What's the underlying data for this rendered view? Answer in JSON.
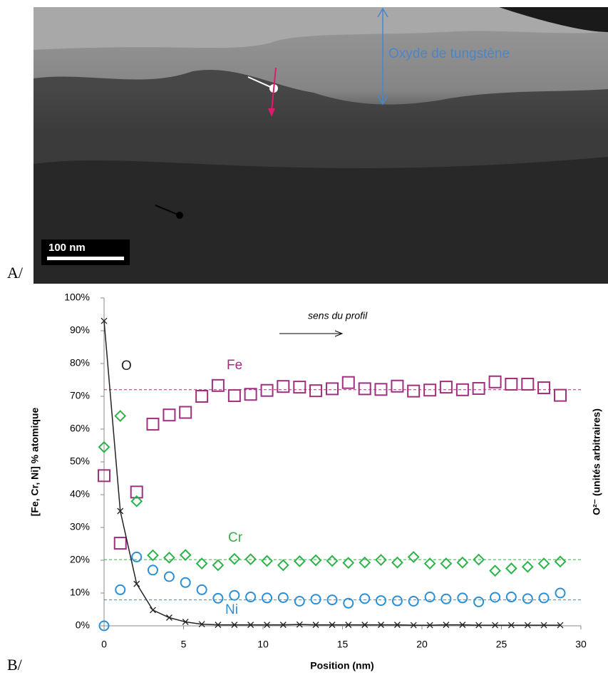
{
  "panel_a": {
    "panel_label": "A/",
    "annotation": "Oxyde de tungstène",
    "scale_bar": "100 nm"
  },
  "chart_data": {
    "type": "scatter",
    "panel_label": "B/",
    "x_label": "Position (nm)",
    "y_label": "[Fe, Cr, Ni] % atomique",
    "y2_label": "O²⁻ (unités arbitraires)",
    "annotation": "sens du profil",
    "xlim": [
      0,
      30
    ],
    "xticks": [
      0,
      5,
      10,
      15,
      20,
      25,
      30
    ],
    "ylim": [
      0,
      100
    ],
    "yticks": [
      {
        "value": 0,
        "label": "0%"
      },
      {
        "value": 10,
        "label": "10%"
      },
      {
        "value": 20,
        "label": "20%"
      },
      {
        "value": 30,
        "label": "30%"
      },
      {
        "value": 40,
        "label": "40%"
      },
      {
        "value": 50,
        "label": "50%"
      },
      {
        "value": 60,
        "label": "60%"
      },
      {
        "value": 70,
        "label": "70%"
      },
      {
        "value": 80,
        "label": "80%"
      },
      {
        "value": 90,
        "label": "90%"
      },
      {
        "value": 100,
        "label": "100%"
      }
    ],
    "x": [
      0,
      1.02,
      2.05,
      3.07,
      4.1,
      5.12,
      6.15,
      7.17,
      8.2,
      9.22,
      10.25,
      11.27,
      12.3,
      13.32,
      14.35,
      15.37,
      16.4,
      17.42,
      18.45,
      19.47,
      20.5,
      21.52,
      22.55,
      23.57,
      24.6,
      25.62,
      26.65,
      27.67,
      28.7
    ],
    "series": [
      {
        "name": "Fe",
        "color": "#a0307f",
        "marker": "square",
        "reference": 72,
        "values": [
          45.8,
          25.2,
          40.8,
          61.5,
          64.3,
          65.1,
          70,
          73.3,
          70.2,
          70.6,
          71.8,
          73,
          72.8,
          71.7,
          72.3,
          74.2,
          72.3,
          72.1,
          73.1,
          71.6,
          71.9,
          72.8,
          72,
          72.4,
          74.4,
          73.7,
          73.7,
          72.6,
          70.3
        ]
      },
      {
        "name": "Cr",
        "color": "#2db34a",
        "marker": "diamond",
        "reference": 20.2,
        "values": [
          54.5,
          64,
          38,
          21.5,
          20.8,
          21.6,
          19,
          18.5,
          20.4,
          20.3,
          19.8,
          18.5,
          19.7,
          20,
          19.8,
          19.2,
          19.3,
          20.1,
          19.3,
          21,
          19,
          19,
          19.3,
          20.2,
          16.8,
          17.5,
          18,
          19,
          19.6
        ]
      },
      {
        "name": "Ni",
        "color": "#2b8fd6",
        "marker": "circle",
        "reference": 7.9,
        "values": [
          0,
          11,
          21,
          17,
          15,
          13.2,
          11,
          8.4,
          9.3,
          8.8,
          8.5,
          8.6,
          7.5,
          8.1,
          7.9,
          6.9,
          8.3,
          7.7,
          7.6,
          7.5,
          8.8,
          8.2,
          8.5,
          7.3,
          8.7,
          8.8,
          8.3,
          8.5,
          10
        ]
      },
      {
        "name": "O",
        "color": "#222222",
        "marker": "cross",
        "line": true,
        "values": [
          93,
          35,
          12.8,
          4.8,
          2.5,
          1.2,
          0.5,
          0.3,
          0.3,
          0.3,
          0.3,
          0.3,
          0.4,
          0.3,
          0.3,
          0.3,
          0.3,
          0.3,
          0.3,
          0.2,
          0.2,
          0.3,
          0.3,
          0.2,
          0.2,
          0.2,
          0.2,
          0.2,
          0.2
        ]
      }
    ]
  }
}
